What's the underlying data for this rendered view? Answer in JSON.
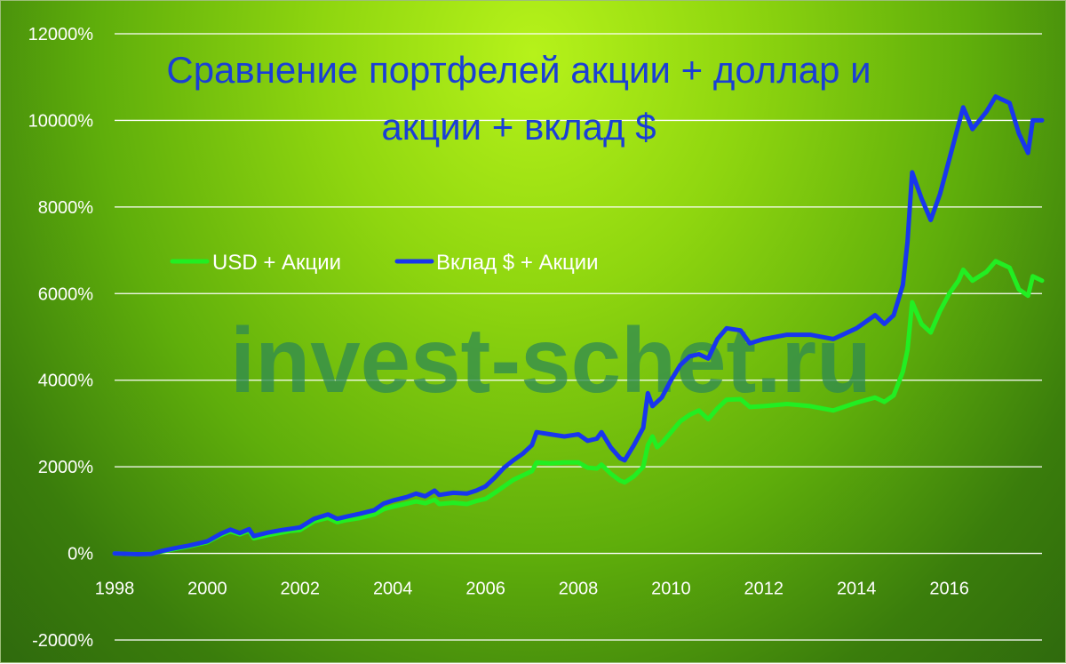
{
  "chart_data": {
    "type": "line",
    "title": "Сравнение портфелей акции + доллар и акции + вклад $",
    "title_lines": [
      "Сравнение портфелей акции + доллар и",
      "акции + вклад $"
    ],
    "watermark": "invest-schet.ru",
    "xlim": [
      1998,
      2018
    ],
    "ylim": [
      -2000,
      12000
    ],
    "x_ticks": [
      "1998",
      "2000",
      "2002",
      "2004",
      "2006",
      "2008",
      "2010",
      "2012",
      "2014",
      "2016"
    ],
    "x_tick_values": [
      1998,
      2000,
      2002,
      2004,
      2006,
      2008,
      2010,
      2012,
      2014,
      2016
    ],
    "y_ticks": [
      "-2000%",
      "0%",
      "2000%",
      "4000%",
      "6000%",
      "8000%",
      "10000%",
      "12000%"
    ],
    "y_tick_values": [
      -2000,
      0,
      2000,
      4000,
      6000,
      8000,
      10000,
      12000
    ],
    "grid": "horizontal",
    "legend_position": "center-left",
    "series": [
      {
        "name": "USD + Акции",
        "color": "#22ee22",
        "points": [
          [
            1998.0,
            0
          ],
          [
            1998.5,
            -20
          ],
          [
            1998.8,
            -10
          ],
          [
            1999.0,
            40
          ],
          [
            1999.3,
            100
          ],
          [
            1999.6,
            160
          ],
          [
            1999.8,
            210
          ],
          [
            2000.0,
            260
          ],
          [
            2000.3,
            430
          ],
          [
            2000.5,
            510
          ],
          [
            2000.7,
            440
          ],
          [
            2000.9,
            520
          ],
          [
            2001.0,
            350
          ],
          [
            2001.3,
            420
          ],
          [
            2001.6,
            480
          ],
          [
            2001.8,
            520
          ],
          [
            2002.0,
            540
          ],
          [
            2002.3,
            740
          ],
          [
            2002.6,
            820
          ],
          [
            2002.8,
            720
          ],
          [
            2003.0,
            770
          ],
          [
            2003.3,
            820
          ],
          [
            2003.6,
            900
          ],
          [
            2003.8,
            1020
          ],
          [
            2004.0,
            1080
          ],
          [
            2004.3,
            1150
          ],
          [
            2004.5,
            1200
          ],
          [
            2004.7,
            1160
          ],
          [
            2004.9,
            1240
          ],
          [
            2005.0,
            1140
          ],
          [
            2005.3,
            1170
          ],
          [
            2005.6,
            1140
          ],
          [
            2005.8,
            1210
          ],
          [
            2006.0,
            1260
          ],
          [
            2006.2,
            1400
          ],
          [
            2006.4,
            1550
          ],
          [
            2006.6,
            1700
          ],
          [
            2006.8,
            1800
          ],
          [
            2007.0,
            1900
          ],
          [
            2007.1,
            2100
          ],
          [
            2007.4,
            2080
          ],
          [
            2007.7,
            2100
          ],
          [
            2008.0,
            2100
          ],
          [
            2008.2,
            1980
          ],
          [
            2008.4,
            1960
          ],
          [
            2008.5,
            2050
          ],
          [
            2008.7,
            1840
          ],
          [
            2008.9,
            1680
          ],
          [
            2009.0,
            1640
          ],
          [
            2009.2,
            1780
          ],
          [
            2009.4,
            2000
          ],
          [
            2009.5,
            2500
          ],
          [
            2009.6,
            2700
          ],
          [
            2009.7,
            2450
          ],
          [
            2009.8,
            2550
          ],
          [
            2010.0,
            2800
          ],
          [
            2010.2,
            3050
          ],
          [
            2010.4,
            3200
          ],
          [
            2010.6,
            3300
          ],
          [
            2010.8,
            3100
          ],
          [
            2011.0,
            3350
          ],
          [
            2011.2,
            3550
          ],
          [
            2011.5,
            3560
          ],
          [
            2011.7,
            3380
          ],
          [
            2012.0,
            3400
          ],
          [
            2012.5,
            3450
          ],
          [
            2013.0,
            3400
          ],
          [
            2013.5,
            3300
          ],
          [
            2014.0,
            3480
          ],
          [
            2014.4,
            3600
          ],
          [
            2014.6,
            3500
          ],
          [
            2014.8,
            3650
          ],
          [
            2015.0,
            4200
          ],
          [
            2015.1,
            4700
          ],
          [
            2015.2,
            5800
          ],
          [
            2015.4,
            5300
          ],
          [
            2015.6,
            5100
          ],
          [
            2015.8,
            5600
          ],
          [
            2016.0,
            6000
          ],
          [
            2016.2,
            6300
          ],
          [
            2016.3,
            6550
          ],
          [
            2016.5,
            6300
          ],
          [
            2016.8,
            6500
          ],
          [
            2017.0,
            6750
          ],
          [
            2017.3,
            6600
          ],
          [
            2017.5,
            6100
          ],
          [
            2017.7,
            5950
          ],
          [
            2017.8,
            6400
          ],
          [
            2018.0,
            6300
          ]
        ]
      },
      {
        "name": "Вклад $ + Акции",
        "color": "#1836ee",
        "points": [
          [
            1998.0,
            0
          ],
          [
            1998.5,
            -20
          ],
          [
            1998.8,
            -10
          ],
          [
            1999.0,
            50
          ],
          [
            1999.3,
            120
          ],
          [
            1999.6,
            180
          ],
          [
            1999.8,
            230
          ],
          [
            2000.0,
            280
          ],
          [
            2000.3,
            460
          ],
          [
            2000.5,
            550
          ],
          [
            2000.7,
            470
          ],
          [
            2000.9,
            560
          ],
          [
            2001.0,
            400
          ],
          [
            2001.3,
            480
          ],
          [
            2001.6,
            540
          ],
          [
            2001.8,
            570
          ],
          [
            2002.0,
            600
          ],
          [
            2002.3,
            800
          ],
          [
            2002.6,
            900
          ],
          [
            2002.8,
            800
          ],
          [
            2003.0,
            850
          ],
          [
            2003.3,
            920
          ],
          [
            2003.6,
            1000
          ],
          [
            2003.8,
            1150
          ],
          [
            2004.0,
            1220
          ],
          [
            2004.3,
            1300
          ],
          [
            2004.5,
            1380
          ],
          [
            2004.7,
            1320
          ],
          [
            2004.9,
            1450
          ],
          [
            2005.0,
            1350
          ],
          [
            2005.3,
            1400
          ],
          [
            2005.6,
            1380
          ],
          [
            2005.8,
            1450
          ],
          [
            2006.0,
            1550
          ],
          [
            2006.2,
            1750
          ],
          [
            2006.4,
            1980
          ],
          [
            2006.6,
            2150
          ],
          [
            2006.8,
            2300
          ],
          [
            2007.0,
            2500
          ],
          [
            2007.1,
            2800
          ],
          [
            2007.4,
            2750
          ],
          [
            2007.7,
            2700
          ],
          [
            2008.0,
            2750
          ],
          [
            2008.2,
            2600
          ],
          [
            2008.4,
            2650
          ],
          [
            2008.5,
            2800
          ],
          [
            2008.7,
            2450
          ],
          [
            2008.9,
            2200
          ],
          [
            2009.0,
            2150
          ],
          [
            2009.2,
            2500
          ],
          [
            2009.4,
            2900
          ],
          [
            2009.5,
            3700
          ],
          [
            2009.6,
            3400
          ],
          [
            2009.8,
            3600
          ],
          [
            2010.0,
            4000
          ],
          [
            2010.2,
            4350
          ],
          [
            2010.4,
            4550
          ],
          [
            2010.6,
            4600
          ],
          [
            2010.8,
            4500
          ],
          [
            2011.0,
            4950
          ],
          [
            2011.2,
            5200
          ],
          [
            2011.5,
            5150
          ],
          [
            2011.7,
            4850
          ],
          [
            2012.0,
            4950
          ],
          [
            2012.5,
            5050
          ],
          [
            2013.0,
            5050
          ],
          [
            2013.5,
            4950
          ],
          [
            2014.0,
            5200
          ],
          [
            2014.4,
            5500
          ],
          [
            2014.6,
            5300
          ],
          [
            2014.8,
            5500
          ],
          [
            2015.0,
            6200
          ],
          [
            2015.1,
            7200
          ],
          [
            2015.2,
            8800
          ],
          [
            2015.4,
            8200
          ],
          [
            2015.6,
            7700
          ],
          [
            2015.8,
            8300
          ],
          [
            2016.0,
            9100
          ],
          [
            2016.2,
            9900
          ],
          [
            2016.3,
            10300
          ],
          [
            2016.5,
            9800
          ],
          [
            2016.8,
            10200
          ],
          [
            2017.0,
            10550
          ],
          [
            2017.3,
            10400
          ],
          [
            2017.5,
            9700
          ],
          [
            2017.7,
            9250
          ],
          [
            2017.8,
            10000
          ],
          [
            2018.0,
            10000
          ]
        ]
      }
    ]
  }
}
